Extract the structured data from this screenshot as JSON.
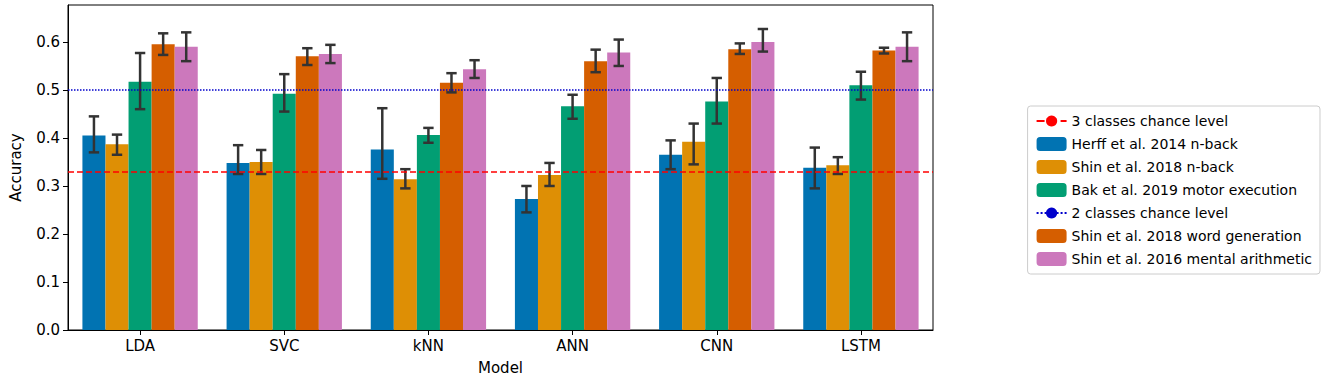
{
  "chart_data": {
    "type": "bar",
    "x_label": "Model",
    "y_label": "Accuracy",
    "categories": [
      "LDA",
      "SVC",
      "kNN",
      "ANN",
      "CNN",
      "LSTM"
    ],
    "ylim": [
      0,
      0.677
    ],
    "yticks": [
      {
        "value": 0,
        "label": "0.0"
      },
      0.1,
      0.2,
      0.3,
      0.4,
      0.5,
      0.6
    ],
    "grid": false,
    "legend": "right",
    "series": [
      {
        "name": "3 classes chance level",
        "type": "hline",
        "y": 0.333,
        "color": "#ff0000",
        "line_style": "dashed"
      },
      {
        "name": "Herff et al. 2014 n-back",
        "color": "#0173b2",
        "values": [
          0.405,
          0.348,
          0.376,
          0.273,
          0.365,
          0.338
        ],
        "errors": [
          [
            0.37,
            0.445
          ],
          [
            0.325,
            0.385
          ],
          [
            0.315,
            0.462
          ],
          [
            0.245,
            0.3
          ],
          [
            0.335,
            0.395
          ],
          [
            0.295,
            0.38
          ]
        ]
      },
      {
        "name": "Shin et al. 2018 n-back",
        "color": "#de8f05",
        "values": [
          0.387,
          0.35,
          0.314,
          0.323,
          0.392,
          0.343
        ],
        "errors": [
          [
            0.365,
            0.407
          ],
          [
            0.325,
            0.375
          ],
          [
            0.295,
            0.335
          ],
          [
            0.3,
            0.348
          ],
          [
            0.345,
            0.43
          ],
          [
            0.325,
            0.36
          ]
        ]
      },
      {
        "name": "Bak et al. 2019 motor execution",
        "color": "#029e73",
        "values": [
          0.517,
          0.492,
          0.406,
          0.466,
          0.476,
          0.51
        ],
        "errors": [
          [
            0.46,
            0.577
          ],
          [
            0.455,
            0.533
          ],
          [
            0.39,
            0.421
          ],
          [
            0.44,
            0.49
          ],
          [
            0.43,
            0.525
          ],
          [
            0.48,
            0.538
          ]
        ]
      },
      {
        "name": "2 classes chance level",
        "type": "hline",
        "y": 0.5,
        "color": "#0000cc",
        "line_style": "dotted"
      },
      {
        "name": "Shin et al. 2018 word generation",
        "color": "#d55e00",
        "values": [
          0.595,
          0.57,
          0.515,
          0.56,
          0.585,
          0.582
        ],
        "errors": [
          [
            0.573,
            0.618
          ],
          [
            0.552,
            0.587
          ],
          [
            0.495,
            0.535
          ],
          [
            0.537,
            0.584
          ],
          [
            0.575,
            0.597
          ],
          [
            0.576,
            0.588
          ]
        ]
      },
      {
        "name": "Shin et al. 2016 mental arithmetic",
        "color": "#cc78bc",
        "values": [
          0.59,
          0.575,
          0.543,
          0.578,
          0.6,
          0.59
        ],
        "errors": [
          [
            0.56,
            0.62
          ],
          [
            0.556,
            0.594
          ],
          [
            0.525,
            0.562
          ],
          [
            0.55,
            0.605
          ],
          [
            0.58,
            0.627
          ],
          [
            0.56,
            0.62
          ]
        ]
      }
    ]
  }
}
